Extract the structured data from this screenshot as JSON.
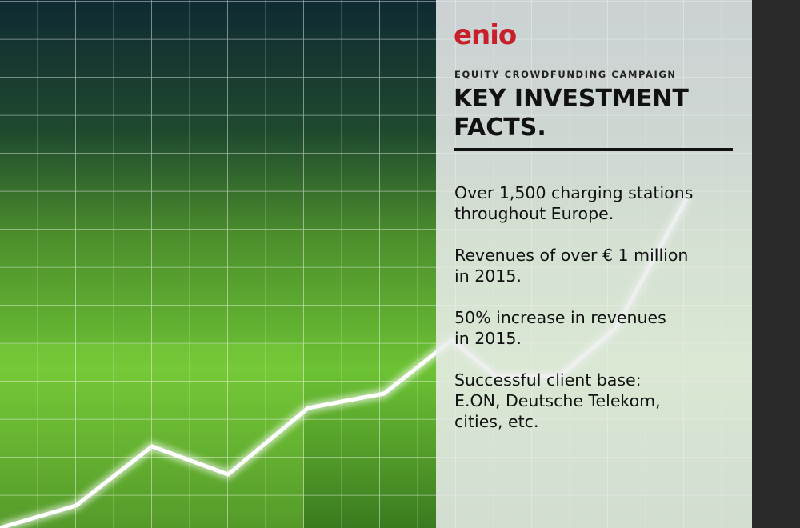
{
  "logo": {
    "text": "enio"
  },
  "subtitle": "EQUITY CROWDFUNDING CAMPAIGN",
  "title": {
    "lines": [
      "KEY INVESTMENT",
      "FACTS."
    ]
  },
  "facts": [
    {
      "lines": [
        "Over 1,500 charging stations",
        "throughout Europe."
      ]
    },
    {
      "lines": [
        "Revenues of over € 1 million",
        "in 2015."
      ]
    },
    {
      "lines": [
        "50% increase in revenues",
        "in 2015."
      ]
    },
    {
      "lines": [
        "Successful client base:",
        "E.ON, Deutsche Telekom,",
        "cities, etc."
      ]
    }
  ]
}
